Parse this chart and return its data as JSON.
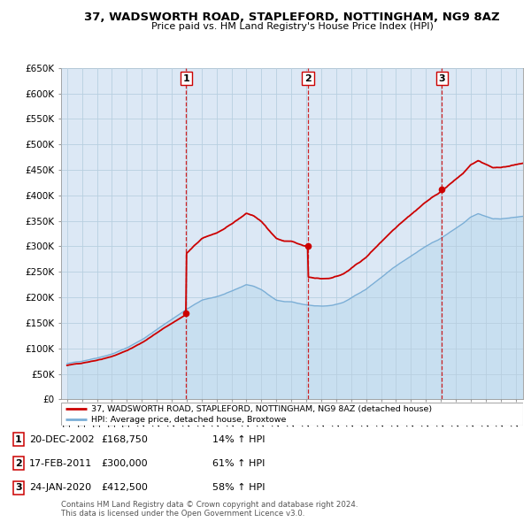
{
  "title": "37, WADSWORTH ROAD, STAPLEFORD, NOTTINGHAM, NG9 8AZ",
  "subtitle": "Price paid vs. HM Land Registry's House Price Index (HPI)",
  "ylim": [
    0,
    650000
  ],
  "yticks": [
    0,
    50000,
    100000,
    150000,
    200000,
    250000,
    300000,
    350000,
    400000,
    450000,
    500000,
    550000,
    600000,
    650000
  ],
  "ytick_labels": [
    "£0",
    "£50K",
    "£100K",
    "£150K",
    "£200K",
    "£250K",
    "£300K",
    "£350K",
    "£400K",
    "£450K",
    "£500K",
    "£550K",
    "£600K",
    "£650K"
  ],
  "xlim_start": 1994.6,
  "xlim_end": 2025.5,
  "xtick_years": [
    1995,
    1996,
    1997,
    1998,
    1999,
    2000,
    2001,
    2002,
    2003,
    2004,
    2005,
    2006,
    2007,
    2008,
    2009,
    2010,
    2011,
    2012,
    2013,
    2014,
    2015,
    2016,
    2017,
    2018,
    2019,
    2020,
    2021,
    2022,
    2023,
    2024,
    2025
  ],
  "transactions": [
    {
      "num": 1,
      "date_str": "20-DEC-2002",
      "date_x": 2002.97,
      "price": 168750,
      "pct": "14%",
      "dir": "↑"
    },
    {
      "num": 2,
      "date_str": "17-FEB-2011",
      "date_x": 2011.12,
      "price": 300000,
      "pct": "61%",
      "dir": "↑"
    },
    {
      "num": 3,
      "date_str": "24-JAN-2020",
      "date_x": 2020.07,
      "price": 412500,
      "pct": "58%",
      "dir": "↑"
    }
  ],
  "legend_property_label": "37, WADSWORTH ROAD, STAPLEFORD, NOTTINGHAM, NG9 8AZ (detached house)",
  "legend_hpi_label": "HPI: Average price, detached house, Broxtowe",
  "property_line_color": "#cc0000",
  "hpi_line_color": "#7aaed6",
  "hpi_fill_color": "#c8dff0",
  "vline_color": "#cc0000",
  "background_color": "#ffffff",
  "chart_bg_color": "#dce8f5",
  "grid_color": "#b8cfe0",
  "footer_text": "Contains HM Land Registry data © Crown copyright and database right 2024.\nThis data is licensed under the Open Government Licence v3.0.",
  "table_rows": [
    [
      "1",
      "20-DEC-2002",
      "£168,750",
      "14% ↑ HPI"
    ],
    [
      "2",
      "17-FEB-2011",
      "£300,000",
      "61% ↑ HPI"
    ],
    [
      "3",
      "24-JAN-2020",
      "£412,500",
      "58% ↑ HPI"
    ]
  ]
}
